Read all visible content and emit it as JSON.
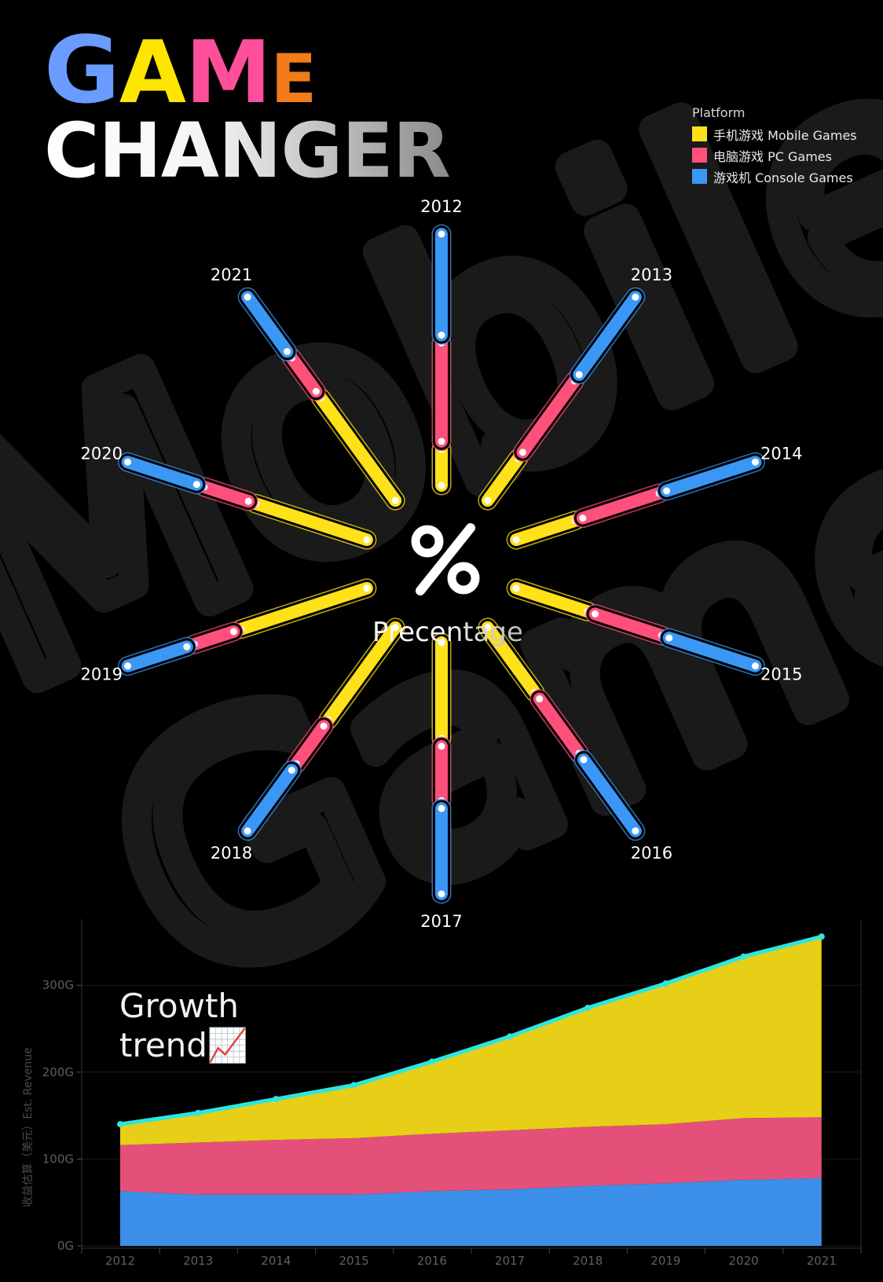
{
  "title": {
    "first": "GAME",
    "second": "CHANGER"
  },
  "watermark": {
    "line1": "Mobile",
    "line2": "Games"
  },
  "legend": {
    "title": "Platform",
    "items": [
      {
        "label": "手机游戏 Mobile Games",
        "color": "#ffe11a"
      },
      {
        "label": "电脑游戏 PC Games",
        "color": "#ff4f7b"
      },
      {
        "label": "游戏机 Console Games",
        "color": "#3a97f5"
      }
    ]
  },
  "center": {
    "symbol": "%",
    "label": "Precentage"
  },
  "chart_heading": {
    "line1": "Growth",
    "line2": "trend📈"
  },
  "chart_data": [
    {
      "type": "radial-stacked-bar",
      "categories": [
        "2012",
        "2013",
        "2014",
        "2015",
        "2016",
        "2017",
        "2018",
        "2019",
        "2020",
        "2021"
      ],
      "series": [
        {
          "name": "手机游戏 Mobile Games",
          "values": [
            17,
            23,
            27,
            32,
            34,
            40,
            47,
            54,
            48,
            52
          ]
        },
        {
          "name": "电脑游戏 PC Games",
          "values": [
            41,
            37,
            34,
            30,
            29,
            24,
            21,
            19,
            21,
            19
          ]
        },
        {
          "name": "游戏机 Console Games",
          "values": [
            42,
            40,
            39,
            38,
            37,
            36,
            32,
            27,
            31,
            29
          ]
        }
      ],
      "unit": "%"
    },
    {
      "type": "area",
      "x": [
        "2012",
        "2013",
        "2014",
        "2015",
        "2016",
        "2017",
        "2018",
        "2019",
        "2020",
        "2021"
      ],
      "series": [
        {
          "name": "游戏机 Console Games",
          "values": [
            63,
            59,
            59,
            59,
            63,
            65,
            69,
            72,
            76,
            78
          ]
        },
        {
          "name": "电脑游戏 PC Games",
          "values": [
            53,
            60,
            63,
            65,
            66,
            68,
            68,
            68,
            71,
            70
          ]
        },
        {
          "name": "手机游戏 Mobile Games",
          "values": [
            24,
            34,
            47,
            61,
            83,
            108,
            137,
            162,
            186,
            208
          ]
        }
      ],
      "totals": [
        140,
        153,
        169,
        185,
        212,
        241,
        274,
        302,
        333,
        356
      ],
      "ylabel": "收益估算（美元）Est. Revenue",
      "yticks": [
        "0G",
        "100G",
        "200G",
        "300G"
      ],
      "ylim": [
        0,
        380
      ],
      "grid": true
    }
  ],
  "colors": {
    "mobile": "#ffe11a",
    "pc": "#ff4f7b",
    "console": "#3a97f5",
    "area_mobile": "#e6cf16",
    "area_pc": "#e5507a",
    "area_console": "#3b8fe8",
    "trend_line": "#2ee6e0",
    "title_letters": [
      "#6a9bff",
      "#ffe600",
      "#ff4f9a",
      "#f27c1a"
    ]
  }
}
